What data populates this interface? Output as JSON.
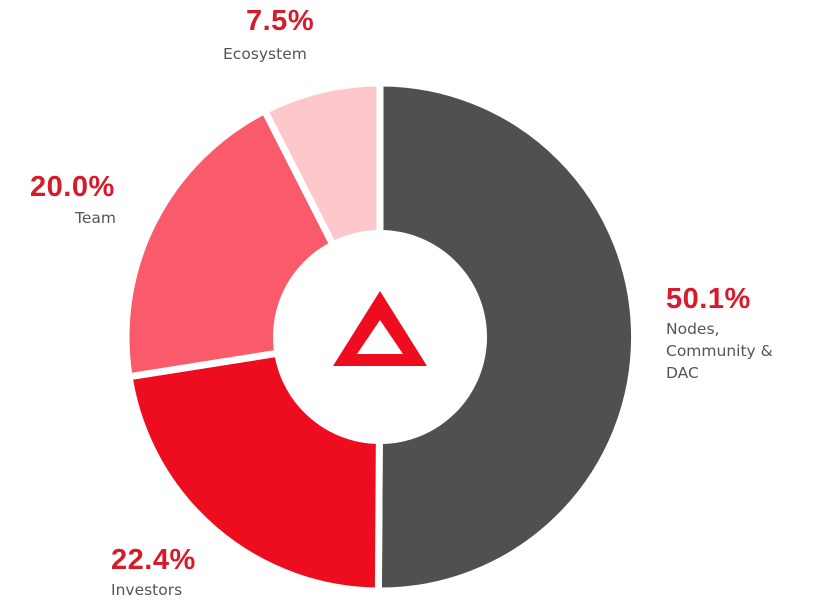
{
  "chart_data": {
    "type": "pie",
    "style": "donut",
    "categories": [
      "Nodes, Community & DAC",
      "Investors",
      "Team",
      "Ecosystem"
    ],
    "values": [
      50.1,
      22.4,
      20.0,
      7.5
    ],
    "unit": "%",
    "colors": [
      "#505050",
      "#ee0d1e",
      "#fa5b6a",
      "#fec7cb"
    ],
    "slices": [
      {
        "value_label": "50.1%",
        "label_lines": [
          "Nodes,",
          "Community &",
          "DAC"
        ]
      },
      {
        "value_label": "22.4%",
        "label_lines": [
          "Investors"
        ]
      },
      {
        "value_label": "20.0%",
        "label_lines": [
          "Team"
        ]
      },
      {
        "value_label": "7.5%",
        "label_lines": [
          "Ecosystem"
        ]
      }
    ],
    "center_icon": "triangle-logo-icon",
    "title": "",
    "legend": "none"
  }
}
